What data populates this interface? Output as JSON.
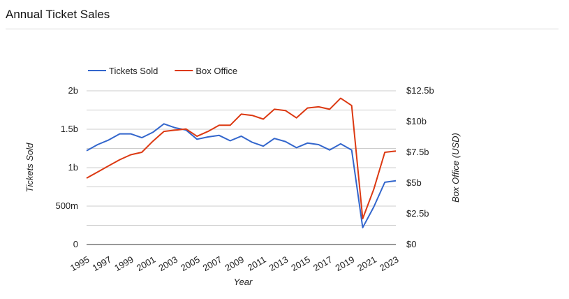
{
  "page": {
    "title": "Annual Ticket Sales"
  },
  "chart_data": {
    "type": "line",
    "x": [
      1995,
      1996,
      1997,
      1998,
      1999,
      2000,
      2001,
      2002,
      2003,
      2004,
      2005,
      2006,
      2007,
      2008,
      2009,
      2010,
      2011,
      2012,
      2013,
      2014,
      2015,
      2016,
      2017,
      2018,
      2019,
      2020,
      2021,
      2022,
      2023
    ],
    "xlabel": "Year",
    "x_ticks": [
      "1995",
      "1997",
      "1999",
      "2001",
      "2003",
      "2005",
      "2007",
      "2009",
      "2011",
      "2013",
      "2015",
      "2017",
      "2019",
      "2021",
      "2023"
    ],
    "grid": true,
    "legend_position": "top-left",
    "axes": {
      "left": {
        "label": "Tickets Sold",
        "ylim": [
          0,
          2000000000
        ],
        "ticks": [
          0,
          500000000,
          1000000000,
          1500000000,
          2000000000
        ],
        "tick_labels": [
          "0",
          "500m",
          "1b",
          "1.5b",
          "2b"
        ]
      },
      "right": {
        "label": "Box Office (USD)",
        "ylim": [
          0,
          12500000000
        ],
        "ticks": [
          0,
          2500000000,
          5000000000,
          7500000000,
          10000000000,
          12500000000
        ],
        "tick_labels": [
          "$0",
          "$2.5b",
          "$5b",
          "$7.5b",
          "$10b",
          "$12.5b"
        ]
      }
    },
    "series": [
      {
        "name": "Tickets Sold",
        "axis": "left",
        "color": "#3366cc",
        "values": [
          1220000000,
          1300000000,
          1360000000,
          1440000000,
          1440000000,
          1390000000,
          1460000000,
          1570000000,
          1520000000,
          1490000000,
          1370000000,
          1400000000,
          1420000000,
          1350000000,
          1410000000,
          1330000000,
          1280000000,
          1380000000,
          1340000000,
          1260000000,
          1320000000,
          1300000000,
          1230000000,
          1310000000,
          1230000000,
          220000000,
          490000000,
          810000000,
          830000000
        ]
      },
      {
        "name": "Box Office",
        "axis": "right",
        "color": "#dc3912",
        "values": [
          5400000000,
          5900000000,
          6400000000,
          6900000000,
          7300000000,
          7500000000,
          8400000000,
          9200000000,
          9300000000,
          9400000000,
          8800000000,
          9200000000,
          9700000000,
          9700000000,
          10600000000,
          10500000000,
          10200000000,
          11000000000,
          10900000000,
          10300000000,
          11100000000,
          11200000000,
          11000000000,
          11900000000,
          11300000000,
          2100000000,
          4500000000,
          7500000000,
          7600000000
        ]
      }
    ]
  }
}
